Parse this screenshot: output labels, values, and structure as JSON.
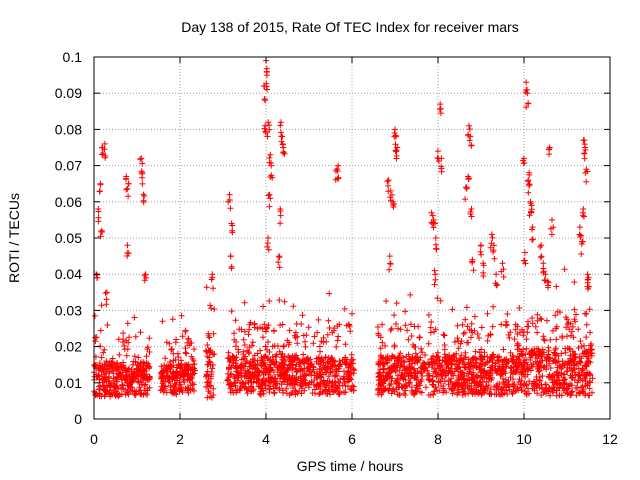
{
  "chart_data": {
    "type": "scatter",
    "title": "Day 138 of 2015, Rate Of TEC Index for receiver mars",
    "xlabel": "GPS time / hours",
    "ylabel": "ROTI / TECUs",
    "xlim": [
      0,
      12
    ],
    "ylim": [
      0,
      0.1
    ],
    "xticks": [
      "0",
      "2",
      "4",
      "6",
      "8",
      "10",
      "12"
    ],
    "yticks": [
      "0",
      "0.01",
      "0.02",
      "0.03",
      "0.04",
      "0.05",
      "0.06",
      "0.07",
      "0.08",
      "0.09",
      "0.1"
    ],
    "grid": true,
    "marker": "+",
    "color": "#ff0000",
    "series": [
      {
        "name": "ROTI",
        "segments": [
          {
            "x_start": 0.0,
            "x_end": 1.3,
            "base": 0.011,
            "spread": 0.008
          },
          {
            "x_start": 1.55,
            "x_end": 2.35,
            "base": 0.011,
            "spread": 0.007
          },
          {
            "x_start": 2.6,
            "x_end": 2.8,
            "base": 0.013,
            "spread": 0.012
          },
          {
            "x_start": 3.1,
            "x_end": 6.05,
            "base": 0.012,
            "spread": 0.009
          },
          {
            "x_start": 6.6,
            "x_end": 9.9,
            "base": 0.012,
            "spread": 0.009
          },
          {
            "x_start": 9.9,
            "x_end": 11.6,
            "base": 0.013,
            "spread": 0.011
          }
        ],
        "peaks": [
          {
            "x": 0.05,
            "y": 0.04
          },
          {
            "x": 0.1,
            "y": 0.058
          },
          {
            "x": 0.15,
            "y": 0.065
          },
          {
            "x": 0.2,
            "y": 0.075
          },
          {
            "x": 0.25,
            "y": 0.076
          },
          {
            "x": 0.18,
            "y": 0.052
          },
          {
            "x": 0.3,
            "y": 0.035
          },
          {
            "x": 0.75,
            "y": 0.067
          },
          {
            "x": 0.8,
            "y": 0.065
          },
          {
            "x": 0.78,
            "y": 0.048
          },
          {
            "x": 1.1,
            "y": 0.072
          },
          {
            "x": 1.12,
            "y": 0.068
          },
          {
            "x": 1.15,
            "y": 0.062
          },
          {
            "x": 1.2,
            "y": 0.04
          },
          {
            "x": 2.75,
            "y": 0.04
          },
          {
            "x": 3.15,
            "y": 0.062
          },
          {
            "x": 3.2,
            "y": 0.054
          },
          {
            "x": 3.18,
            "y": 0.045
          },
          {
            "x": 3.95,
            "y": 0.092
          },
          {
            "x": 4.0,
            "y": 0.099
          },
          {
            "x": 4.02,
            "y": 0.095
          },
          {
            "x": 3.98,
            "y": 0.081
          },
          {
            "x": 4.05,
            "y": 0.082
          },
          {
            "x": 4.1,
            "y": 0.073
          },
          {
            "x": 4.12,
            "y": 0.07
          },
          {
            "x": 4.08,
            "y": 0.062
          },
          {
            "x": 4.05,
            "y": 0.05
          },
          {
            "x": 4.35,
            "y": 0.082
          },
          {
            "x": 4.38,
            "y": 0.078
          },
          {
            "x": 4.4,
            "y": 0.075
          },
          {
            "x": 4.33,
            "y": 0.058
          },
          {
            "x": 4.3,
            "y": 0.045
          },
          {
            "x": 5.65,
            "y": 0.069
          },
          {
            "x": 5.68,
            "y": 0.07
          },
          {
            "x": 6.85,
            "y": 0.066
          },
          {
            "x": 6.9,
            "y": 0.063
          },
          {
            "x": 6.95,
            "y": 0.06
          },
          {
            "x": 7.0,
            "y": 0.08
          },
          {
            "x": 7.02,
            "y": 0.078
          },
          {
            "x": 7.05,
            "y": 0.075
          },
          {
            "x": 6.88,
            "y": 0.045
          },
          {
            "x": 7.85,
            "y": 0.057
          },
          {
            "x": 7.9,
            "y": 0.055
          },
          {
            "x": 7.95,
            "y": 0.05
          },
          {
            "x": 8.0,
            "y": 0.074
          },
          {
            "x": 8.05,
            "y": 0.087
          },
          {
            "x": 8.08,
            "y": 0.072
          },
          {
            "x": 7.92,
            "y": 0.041
          },
          {
            "x": 8.65,
            "y": 0.064
          },
          {
            "x": 8.7,
            "y": 0.067
          },
          {
            "x": 8.72,
            "y": 0.081
          },
          {
            "x": 8.75,
            "y": 0.078
          },
          {
            "x": 8.78,
            "y": 0.058
          },
          {
            "x": 8.8,
            "y": 0.044
          },
          {
            "x": 9.0,
            "y": 0.048
          },
          {
            "x": 9.05,
            "y": 0.043
          },
          {
            "x": 9.25,
            "y": 0.051
          },
          {
            "x": 9.3,
            "y": 0.048
          },
          {
            "x": 9.35,
            "y": 0.04
          },
          {
            "x": 9.5,
            "y": 0.043
          },
          {
            "x": 10.0,
            "y": 0.072
          },
          {
            "x": 10.05,
            "y": 0.093
          },
          {
            "x": 10.08,
            "y": 0.09
          },
          {
            "x": 10.1,
            "y": 0.066
          },
          {
            "x": 10.12,
            "y": 0.068
          },
          {
            "x": 10.15,
            "y": 0.06
          },
          {
            "x": 10.18,
            "y": 0.059
          },
          {
            "x": 10.02,
            "y": 0.046
          },
          {
            "x": 10.2,
            "y": 0.053
          },
          {
            "x": 10.4,
            "y": 0.048
          },
          {
            "x": 10.45,
            "y": 0.043
          },
          {
            "x": 10.5,
            "y": 0.04
          },
          {
            "x": 10.6,
            "y": 0.075
          },
          {
            "x": 10.65,
            "y": 0.055
          },
          {
            "x": 10.55,
            "y": 0.038
          },
          {
            "x": 11.3,
            "y": 0.053
          },
          {
            "x": 11.35,
            "y": 0.049
          },
          {
            "x": 11.4,
            "y": 0.077
          },
          {
            "x": 11.42,
            "y": 0.075
          },
          {
            "x": 11.45,
            "y": 0.069
          },
          {
            "x": 11.38,
            "y": 0.058
          },
          {
            "x": 11.48,
            "y": 0.04
          },
          {
            "x": 11.5,
            "y": 0.039
          }
        ]
      }
    ]
  }
}
